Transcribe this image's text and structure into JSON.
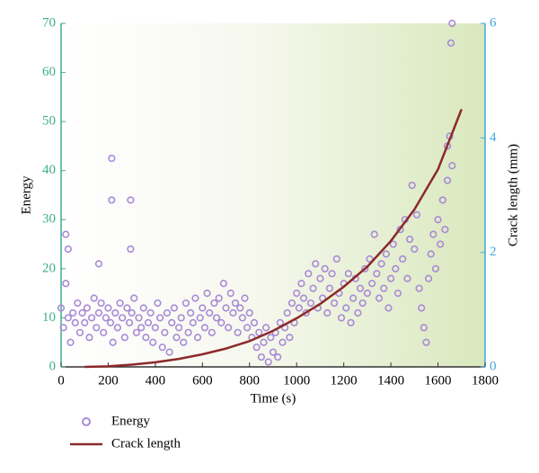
{
  "chart_data": {
    "type": "scatter",
    "xlabel": "Time (s)",
    "ylabel": "Energy",
    "y2label": "Crack length (mm)",
    "xlim": [
      0,
      1800
    ],
    "xticks": [
      0,
      200,
      400,
      600,
      800,
      1000,
      1200,
      1400,
      1600,
      1800
    ],
    "ylim": [
      0,
      70
    ],
    "yticks": [
      0,
      10,
      20,
      30,
      40,
      50,
      60,
      70
    ],
    "y2lim": [
      0,
      6
    ],
    "y2ticks": [
      0,
      2,
      4,
      6
    ],
    "ycolor": "#3fae8c",
    "y2color": "#40a8dc",
    "series": [
      {
        "name": "Energy",
        "type": "scatter",
        "color": "#a98ad6",
        "x": [
          0,
          10,
          20,
          30,
          40,
          50,
          60,
          70,
          80,
          90,
          100,
          110,
          120,
          130,
          140,
          150,
          160,
          170,
          180,
          190,
          200,
          210,
          220,
          230,
          240,
          250,
          260,
          270,
          280,
          290,
          300,
          310,
          320,
          330,
          340,
          350,
          360,
          370,
          380,
          390,
          400,
          410,
          420,
          430,
          440,
          450,
          460,
          470,
          480,
          490,
          500,
          510,
          520,
          530,
          540,
          550,
          560,
          570,
          580,
          590,
          600,
          610,
          620,
          630,
          640,
          650,
          660,
          670,
          680,
          690,
          700,
          710,
          720,
          730,
          740,
          750,
          760,
          770,
          780,
          790,
          800,
          810,
          820,
          830,
          840,
          850,
          860,
          870,
          880,
          890,
          900,
          910,
          920,
          930,
          940,
          950,
          960,
          970,
          980,
          990,
          1000,
          1010,
          1020,
          1030,
          1040,
          1050,
          1060,
          1070,
          1080,
          1090,
          1100,
          1110,
          1120,
          1130,
          1140,
          1150,
          1160,
          1170,
          1180,
          1190,
          1200,
          1210,
          1220,
          1230,
          1240,
          1250,
          1260,
          1270,
          1280,
          1290,
          1300,
          1310,
          1320,
          1330,
          1340,
          1350,
          1360,
          1370,
          1380,
          1390,
          1400,
          1410,
          1420,
          1430,
          1440,
          1450,
          1460,
          1470,
          1480,
          1490,
          1500,
          1510,
          1520,
          1530,
          1540,
          1550,
          1560,
          1570,
          1580,
          1590,
          1600,
          1610,
          1620,
          1630,
          1640,
          1650,
          1660,
          20,
          30,
          160,
          215,
          215,
          295,
          295,
          1655,
          1660,
          1640
        ],
        "values": [
          12,
          8,
          17,
          10,
          5,
          11,
          9,
          13,
          7,
          11,
          9,
          12,
          6,
          10,
          14,
          8,
          11,
          13,
          7,
          10,
          12,
          9,
          5,
          11,
          8,
          13,
          10,
          6,
          12,
          9,
          11,
          14,
          7,
          10,
          8,
          12,
          6,
          9,
          11,
          5,
          8,
          13,
          10,
          4,
          7,
          11,
          3,
          9,
          12,
          6,
          8,
          10,
          5,
          13,
          7,
          11,
          9,
          14,
          6,
          10,
          12,
          8,
          15,
          11,
          7,
          13,
          10,
          14,
          9,
          17,
          12,
          8,
          15,
          11,
          13,
          7,
          12,
          10,
          14,
          8,
          11,
          6,
          9,
          4,
          7,
          2,
          5,
          8,
          1,
          6,
          3,
          7,
          2,
          9,
          5,
          8,
          11,
          6,
          13,
          9,
          15,
          12,
          17,
          14,
          11,
          19,
          13,
          16,
          21,
          12,
          18,
          14,
          20,
          11,
          16,
          19,
          13,
          22,
          15,
          10,
          17,
          12,
          19,
          9,
          14,
          18,
          11,
          16,
          13,
          20,
          15,
          22,
          17,
          27,
          19,
          14,
          21,
          16,
          23,
          12,
          18,
          25,
          20,
          15,
          28,
          22,
          30,
          18,
          26,
          37,
          24,
          31,
          16,
          12,
          8,
          5,
          18,
          23,
          27,
          20,
          30,
          25,
          34,
          28,
          38,
          47,
          41,
          27,
          24,
          21,
          42.5,
          34,
          34,
          24,
          66,
          70,
          45
        ]
      },
      {
        "name": "Crack length",
        "type": "line",
        "axis": "y2",
        "color": "#8b2a2a",
        "x": [
          100,
          200,
          300,
          400,
          500,
          600,
          700,
          800,
          900,
          1000,
          1100,
          1200,
          1300,
          1400,
          1500,
          1600,
          1700
        ],
        "values": [
          0,
          0.01,
          0.04,
          0.08,
          0.14,
          0.22,
          0.32,
          0.45,
          0.63,
          0.85,
          1.1,
          1.4,
          1.75,
          2.2,
          2.75,
          3.45,
          4.5
        ]
      }
    ]
  }
}
